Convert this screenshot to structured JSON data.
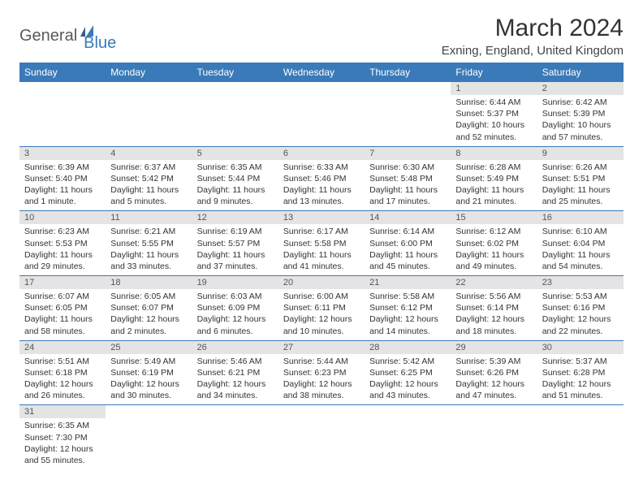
{
  "logo": {
    "general": "General",
    "blue": "Blue"
  },
  "title": "March 2024",
  "location": "Exning, England, United Kingdom",
  "colors": {
    "header_bg": "#3a7ab8",
    "header_fg": "#ffffff",
    "daynum_bg": "#e4e4e4",
    "border": "#3a7ab8",
    "text": "#333333"
  },
  "weekdays": [
    "Sunday",
    "Monday",
    "Tuesday",
    "Wednesday",
    "Thursday",
    "Friday",
    "Saturday"
  ],
  "weeks": [
    [
      null,
      null,
      null,
      null,
      null,
      {
        "n": "1",
        "sr": "Sunrise: 6:44 AM",
        "ss": "Sunset: 5:37 PM",
        "dl": "Daylight: 10 hours and 52 minutes."
      },
      {
        "n": "2",
        "sr": "Sunrise: 6:42 AM",
        "ss": "Sunset: 5:39 PM",
        "dl": "Daylight: 10 hours and 57 minutes."
      }
    ],
    [
      {
        "n": "3",
        "sr": "Sunrise: 6:39 AM",
        "ss": "Sunset: 5:40 PM",
        "dl": "Daylight: 11 hours and 1 minute."
      },
      {
        "n": "4",
        "sr": "Sunrise: 6:37 AM",
        "ss": "Sunset: 5:42 PM",
        "dl": "Daylight: 11 hours and 5 minutes."
      },
      {
        "n": "5",
        "sr": "Sunrise: 6:35 AM",
        "ss": "Sunset: 5:44 PM",
        "dl": "Daylight: 11 hours and 9 minutes."
      },
      {
        "n": "6",
        "sr": "Sunrise: 6:33 AM",
        "ss": "Sunset: 5:46 PM",
        "dl": "Daylight: 11 hours and 13 minutes."
      },
      {
        "n": "7",
        "sr": "Sunrise: 6:30 AM",
        "ss": "Sunset: 5:48 PM",
        "dl": "Daylight: 11 hours and 17 minutes."
      },
      {
        "n": "8",
        "sr": "Sunrise: 6:28 AM",
        "ss": "Sunset: 5:49 PM",
        "dl": "Daylight: 11 hours and 21 minutes."
      },
      {
        "n": "9",
        "sr": "Sunrise: 6:26 AM",
        "ss": "Sunset: 5:51 PM",
        "dl": "Daylight: 11 hours and 25 minutes."
      }
    ],
    [
      {
        "n": "10",
        "sr": "Sunrise: 6:23 AM",
        "ss": "Sunset: 5:53 PM",
        "dl": "Daylight: 11 hours and 29 minutes."
      },
      {
        "n": "11",
        "sr": "Sunrise: 6:21 AM",
        "ss": "Sunset: 5:55 PM",
        "dl": "Daylight: 11 hours and 33 minutes."
      },
      {
        "n": "12",
        "sr": "Sunrise: 6:19 AM",
        "ss": "Sunset: 5:57 PM",
        "dl": "Daylight: 11 hours and 37 minutes."
      },
      {
        "n": "13",
        "sr": "Sunrise: 6:17 AM",
        "ss": "Sunset: 5:58 PM",
        "dl": "Daylight: 11 hours and 41 minutes."
      },
      {
        "n": "14",
        "sr": "Sunrise: 6:14 AM",
        "ss": "Sunset: 6:00 PM",
        "dl": "Daylight: 11 hours and 45 minutes."
      },
      {
        "n": "15",
        "sr": "Sunrise: 6:12 AM",
        "ss": "Sunset: 6:02 PM",
        "dl": "Daylight: 11 hours and 49 minutes."
      },
      {
        "n": "16",
        "sr": "Sunrise: 6:10 AM",
        "ss": "Sunset: 6:04 PM",
        "dl": "Daylight: 11 hours and 54 minutes."
      }
    ],
    [
      {
        "n": "17",
        "sr": "Sunrise: 6:07 AM",
        "ss": "Sunset: 6:05 PM",
        "dl": "Daylight: 11 hours and 58 minutes."
      },
      {
        "n": "18",
        "sr": "Sunrise: 6:05 AM",
        "ss": "Sunset: 6:07 PM",
        "dl": "Daylight: 12 hours and 2 minutes."
      },
      {
        "n": "19",
        "sr": "Sunrise: 6:03 AM",
        "ss": "Sunset: 6:09 PM",
        "dl": "Daylight: 12 hours and 6 minutes."
      },
      {
        "n": "20",
        "sr": "Sunrise: 6:00 AM",
        "ss": "Sunset: 6:11 PM",
        "dl": "Daylight: 12 hours and 10 minutes."
      },
      {
        "n": "21",
        "sr": "Sunrise: 5:58 AM",
        "ss": "Sunset: 6:12 PM",
        "dl": "Daylight: 12 hours and 14 minutes."
      },
      {
        "n": "22",
        "sr": "Sunrise: 5:56 AM",
        "ss": "Sunset: 6:14 PM",
        "dl": "Daylight: 12 hours and 18 minutes."
      },
      {
        "n": "23",
        "sr": "Sunrise: 5:53 AM",
        "ss": "Sunset: 6:16 PM",
        "dl": "Daylight: 12 hours and 22 minutes."
      }
    ],
    [
      {
        "n": "24",
        "sr": "Sunrise: 5:51 AM",
        "ss": "Sunset: 6:18 PM",
        "dl": "Daylight: 12 hours and 26 minutes."
      },
      {
        "n": "25",
        "sr": "Sunrise: 5:49 AM",
        "ss": "Sunset: 6:19 PM",
        "dl": "Daylight: 12 hours and 30 minutes."
      },
      {
        "n": "26",
        "sr": "Sunrise: 5:46 AM",
        "ss": "Sunset: 6:21 PM",
        "dl": "Daylight: 12 hours and 34 minutes."
      },
      {
        "n": "27",
        "sr": "Sunrise: 5:44 AM",
        "ss": "Sunset: 6:23 PM",
        "dl": "Daylight: 12 hours and 38 minutes."
      },
      {
        "n": "28",
        "sr": "Sunrise: 5:42 AM",
        "ss": "Sunset: 6:25 PM",
        "dl": "Daylight: 12 hours and 43 minutes."
      },
      {
        "n": "29",
        "sr": "Sunrise: 5:39 AM",
        "ss": "Sunset: 6:26 PM",
        "dl": "Daylight: 12 hours and 47 minutes."
      },
      {
        "n": "30",
        "sr": "Sunrise: 5:37 AM",
        "ss": "Sunset: 6:28 PM",
        "dl": "Daylight: 12 hours and 51 minutes."
      }
    ],
    [
      {
        "n": "31",
        "sr": "Sunrise: 6:35 AM",
        "ss": "Sunset: 7:30 PM",
        "dl": "Daylight: 12 hours and 55 minutes."
      },
      null,
      null,
      null,
      null,
      null,
      null
    ]
  ]
}
